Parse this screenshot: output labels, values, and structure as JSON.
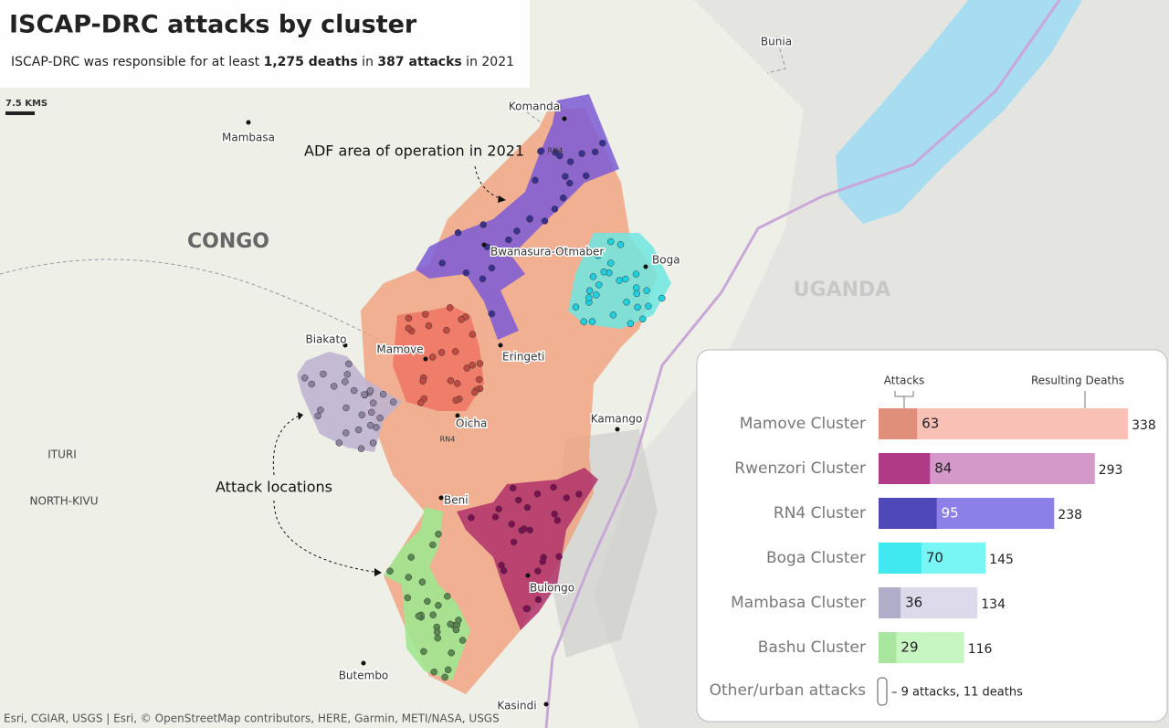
{
  "header": {
    "title": "ISCAP-DRC attacks by cluster",
    "subtitle": [
      "ISCAP-DRC was responsible for at least ",
      "1,275 deaths",
      " in ",
      "387 attacks",
      " in 2021"
    ]
  },
  "scale": "7.5 KMS",
  "places": [
    "Bunia",
    "Komanda",
    "Mambasa",
    "Bwanasura-Otmaber",
    "Boga",
    "Biakato",
    "Mamove",
    "Eringeti",
    "Oicha",
    "Kamango",
    "Beni",
    "Bulongo",
    "Butembo",
    "Kasindi"
  ],
  "regions": [
    "CONGO",
    "UGANDA",
    "ITURI",
    "NORTH-KIVU"
  ],
  "roads": [
    "RN4",
    "RN4"
  ],
  "annotations": [
    "ADF area of operation in 2021",
    "Attack locations"
  ],
  "attribution": "Esri, CGIAR, USGS | Esri, © OpenStreetMap contributors, HERE, Garmin, METI/NASA, USGS",
  "chart_data": {
    "type": "bar",
    "categories": [
      "Mamove Cluster",
      "Rwenzori Cluster",
      "RN4 Cluster",
      "Boga Cluster",
      "Mambasa Cluster",
      "Bashu Cluster"
    ],
    "series": [
      {
        "name": "Attacks",
        "values": [
          63,
          84,
          95,
          70,
          36,
          29
        ],
        "colors": [
          "#e0907a",
          "#b03a85",
          "#4f48b8",
          "#40e8f0",
          "#b0adc8",
          "#a8e6a0"
        ]
      },
      {
        "name": "Resulting Deaths",
        "values": [
          338,
          293,
          238,
          145,
          134,
          116
        ],
        "colors": [
          "#f9c1b6",
          "#d499c8",
          "#8a80e8",
          "#78f6f6",
          "#dddbeb",
          "#c8f6c2"
        ]
      }
    ],
    "other": {
      "label": "Other/urban attacks",
      "note": "– 9 attacks, 11 deaths"
    }
  }
}
